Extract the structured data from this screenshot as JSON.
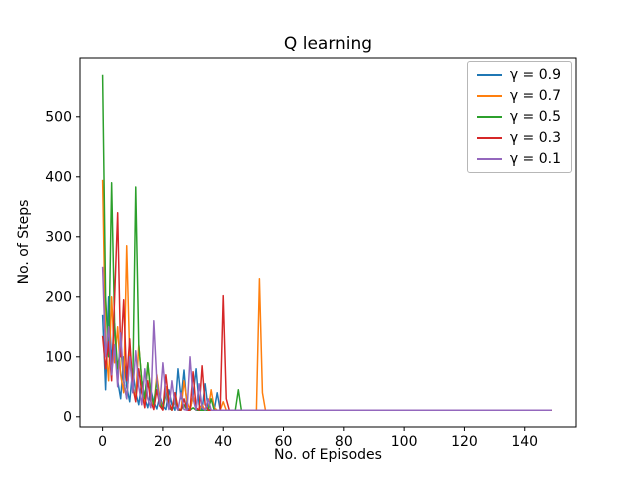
{
  "chart_data": {
    "type": "line",
    "title": "Q learning",
    "xlabel": "No. of Episodes",
    "ylabel": "No. of Steps",
    "x_start": 0,
    "x_step": 1,
    "n_points": 150,
    "xlim": [
      -7.5,
      157
    ],
    "ylim": [
      -17,
      598
    ],
    "x_ticks": [
      0,
      20,
      40,
      60,
      80,
      100,
      120,
      140
    ],
    "y_ticks": [
      0,
      100,
      200,
      300,
      400,
      500
    ],
    "grid": false,
    "legend_position": "upper right",
    "converged_steps": 11,
    "series": [
      {
        "name": "γ = 0.9",
        "color": "#1f77b4",
        "values": [
          170,
          45,
          200,
          90,
          155,
          60,
          30,
          100,
          50,
          25,
          80,
          40,
          20,
          60,
          30,
          15,
          45,
          25,
          13,
          35,
          18,
          12,
          45,
          20,
          11,
          80,
          30,
          78,
          15,
          11,
          35,
          80,
          20,
          11,
          55,
          13,
          11,
          11,
          40,
          11,
          11,
          11,
          11,
          11,
          11,
          11,
          11,
          11,
          11,
          11,
          11,
          11,
          11,
          11,
          11,
          11,
          11,
          11,
          11,
          11,
          11,
          11,
          11,
          11,
          11,
          11,
          11,
          11,
          11,
          11,
          11,
          11,
          11,
          11,
          11,
          11,
          11,
          11,
          11,
          11,
          11,
          11,
          11,
          11,
          11,
          11,
          11,
          11,
          11,
          11,
          11,
          11,
          11,
          11,
          11,
          11,
          11,
          11,
          11,
          11,
          11,
          11,
          11,
          11,
          11,
          11,
          11,
          11,
          11,
          11,
          11,
          11,
          11,
          11,
          11,
          11,
          11,
          11,
          11,
          11,
          11,
          11,
          11,
          11,
          11,
          11,
          11,
          11,
          11,
          11,
          11,
          11,
          11,
          11,
          11,
          11,
          11,
          11,
          11,
          11,
          11,
          11,
          11,
          11,
          11,
          11,
          11,
          11,
          11,
          11
        ]
      },
      {
        "name": "γ = 0.7",
        "color": "#ff7f0e",
        "values": [
          395,
          120,
          60,
          200,
          90,
          150,
          70,
          40,
          285,
          100,
          50,
          30,
          120,
          60,
          25,
          90,
          40,
          15,
          70,
          30,
          12,
          50,
          20,
          11,
          40,
          15,
          11,
          60,
          25,
          11,
          35,
          13,
          11,
          20,
          11,
          11,
          45,
          15,
          11,
          11,
          25,
          11,
          11,
          11,
          11,
          11,
          11,
          11,
          11,
          11,
          11,
          11,
          230,
          40,
          11,
          11,
          11,
          11,
          11,
          11,
          11,
          11,
          11,
          11,
          11,
          11,
          11,
          11,
          11,
          11,
          11,
          11,
          11,
          11,
          11,
          11,
          11,
          11,
          11,
          11,
          11,
          11,
          11,
          11,
          11,
          11,
          11,
          11,
          11,
          11,
          11,
          11,
          11,
          11,
          11,
          11,
          11,
          11,
          11,
          11,
          11,
          11,
          11,
          11,
          11,
          11,
          11,
          11,
          11,
          11,
          11,
          11,
          11,
          11,
          11,
          11,
          11,
          11,
          11,
          11,
          11,
          11,
          11,
          11,
          11,
          11,
          11,
          11,
          11,
          11,
          11,
          11,
          11,
          11,
          11,
          11,
          11,
          11,
          11,
          11,
          11,
          11,
          11,
          11,
          11,
          11,
          11,
          11,
          11,
          11
        ]
      },
      {
        "name": "γ = 0.5",
        "color": "#2ca02c",
        "values": [
          570,
          200,
          100,
          390,
          150,
          80,
          120,
          60,
          30,
          100,
          50,
          383,
          120,
          60,
          30,
          90,
          40,
          20,
          60,
          25,
          12,
          40,
          15,
          11,
          30,
          11,
          11,
          20,
          11,
          11,
          15,
          11,
          11,
          11,
          11,
          11,
          30,
          11,
          11,
          11,
          11,
          11,
          11,
          11,
          11,
          45,
          11,
          11,
          11,
          11,
          11,
          11,
          11,
          11,
          11,
          11,
          11,
          11,
          11,
          11,
          11,
          11,
          11,
          11,
          11,
          11,
          11,
          11,
          11,
          11,
          11,
          11,
          11,
          11,
          11,
          11,
          11,
          11,
          11,
          11,
          11,
          11,
          11,
          11,
          11,
          11,
          11,
          11,
          11,
          11,
          11,
          11,
          11,
          11,
          11,
          11,
          11,
          11,
          11,
          11,
          11,
          11,
          11,
          11,
          11,
          11,
          11,
          11,
          11,
          11,
          11,
          11,
          11,
          11,
          11,
          11,
          11,
          11,
          11,
          11,
          11,
          11,
          11,
          11,
          11,
          11,
          11,
          11,
          11,
          11,
          11,
          11,
          11,
          11,
          11,
          11,
          11,
          11,
          11,
          11,
          11,
          11,
          11,
          11,
          11,
          11,
          11,
          11,
          11,
          11
        ]
      },
      {
        "name": "γ = 0.3",
        "color": "#d62728",
        "values": [
          135,
          80,
          125,
          60,
          200,
          340,
          100,
          195,
          60,
          130,
          50,
          25,
          80,
          40,
          15,
          60,
          25,
          12,
          45,
          18,
          11,
          70,
          25,
          11,
          40,
          12,
          11,
          30,
          11,
          11,
          75,
          15,
          11,
          85,
          20,
          11,
          11,
          11,
          11,
          11,
          202,
          30,
          11,
          11,
          11,
          11,
          11,
          11,
          11,
          11,
          11,
          11,
          11,
          11,
          11,
          11,
          11,
          11,
          11,
          11,
          11,
          11,
          11,
          11,
          11,
          11,
          11,
          11,
          11,
          11,
          11,
          11,
          11,
          11,
          11,
          11,
          11,
          11,
          11,
          11,
          11,
          11,
          11,
          11,
          11,
          11,
          11,
          11,
          11,
          11,
          11,
          11,
          11,
          11,
          11,
          11,
          11,
          11,
          11,
          11,
          11,
          11,
          11,
          11,
          11,
          11,
          11,
          11,
          11,
          11,
          11,
          11,
          11,
          11,
          11,
          11,
          11,
          11,
          11,
          11,
          11,
          11,
          11,
          11,
          11,
          11,
          11,
          11,
          11,
          11,
          11,
          11,
          11,
          11,
          11,
          11,
          11,
          11,
          11,
          11,
          11,
          11,
          11,
          11,
          11,
          11,
          11,
          11,
          11,
          11
        ]
      },
      {
        "name": "γ = 0.1",
        "color": "#9467bd",
        "values": [
          250,
          100,
          150,
          70,
          120,
          50,
          140,
          60,
          30,
          100,
          40,
          110,
          50,
          20,
          80,
          30,
          15,
          160,
          60,
          20,
          90,
          35,
          12,
          60,
          20,
          11,
          40,
          12,
          11,
          100,
          30,
          11,
          55,
          15,
          11,
          30,
          11,
          11,
          11,
          11,
          11,
          11,
          11,
          11,
          11,
          11,
          11,
          11,
          11,
          11,
          11,
          11,
          11,
          11,
          11,
          11,
          11,
          11,
          11,
          11,
          11,
          11,
          11,
          11,
          11,
          11,
          11,
          11,
          11,
          11,
          11,
          11,
          11,
          11,
          11,
          11,
          11,
          11,
          11,
          11,
          11,
          11,
          11,
          11,
          11,
          11,
          11,
          11,
          11,
          11,
          11,
          11,
          11,
          11,
          11,
          11,
          11,
          11,
          11,
          11,
          11,
          11,
          11,
          11,
          11,
          11,
          11,
          11,
          11,
          11,
          11,
          11,
          11,
          11,
          11,
          11,
          11,
          11,
          11,
          11,
          11,
          11,
          11,
          11,
          11,
          11,
          11,
          11,
          11,
          11,
          11,
          11,
          11,
          11,
          11,
          11,
          11,
          11,
          11,
          11,
          11,
          11,
          11,
          11,
          11,
          11,
          11,
          11,
          11,
          11
        ]
      }
    ]
  }
}
